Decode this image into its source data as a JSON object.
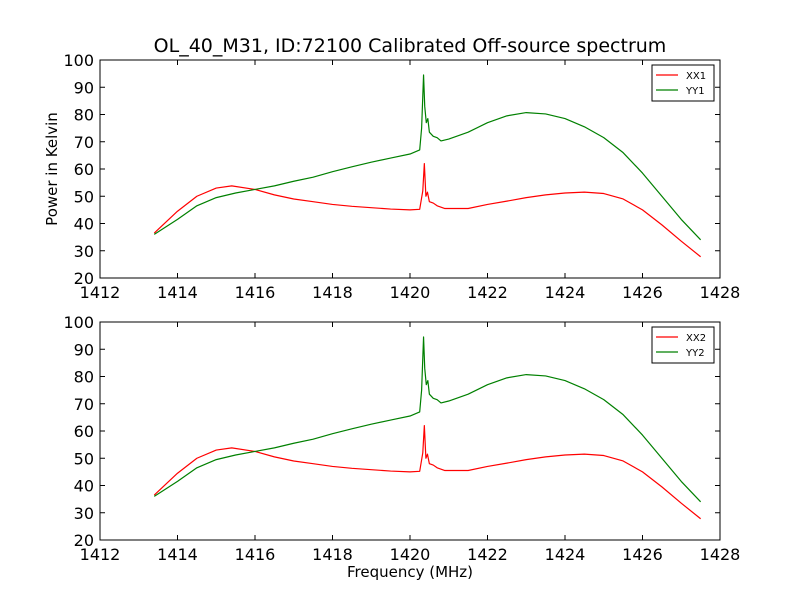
{
  "title": "OL_40_M31, ID:72100 Calibrated Off-source spectrum",
  "colors": {
    "XX": "#ff0000",
    "YY": "#008000"
  },
  "chart_data": [
    {
      "type": "line",
      "ylabel": "Power in Kelvin",
      "xlabel": "",
      "xlim": [
        1412,
        1428
      ],
      "ylim": [
        20,
        100
      ],
      "xticks": [
        1412,
        1414,
        1416,
        1418,
        1420,
        1422,
        1424,
        1426,
        1428
      ],
      "yticks": [
        20,
        30,
        40,
        50,
        60,
        70,
        80,
        90,
        100
      ],
      "legend": "top-right",
      "series": [
        {
          "name": "XX1",
          "color": "#ff0000",
          "points": [
            [
              1413.4,
              36.5
            ],
            [
              1414.0,
              44.5
            ],
            [
              1414.5,
              50.0
            ],
            [
              1415.0,
              53.0
            ],
            [
              1415.4,
              53.8
            ],
            [
              1416.0,
              52.5
            ],
            [
              1416.5,
              50.5
            ],
            [
              1417.0,
              49.0
            ],
            [
              1417.5,
              48.0
            ],
            [
              1418.0,
              47.0
            ],
            [
              1418.5,
              46.3
            ],
            [
              1419.0,
              45.8
            ],
            [
              1419.5,
              45.3
            ],
            [
              1420.0,
              45.0
            ],
            [
              1420.25,
              45.2
            ],
            [
              1420.33,
              52.0
            ],
            [
              1420.37,
              62.0
            ],
            [
              1420.41,
              50.0
            ],
            [
              1420.45,
              51.5
            ],
            [
              1420.5,
              48.0
            ],
            [
              1420.6,
              47.5
            ],
            [
              1420.7,
              46.5
            ],
            [
              1420.9,
              45.5
            ],
            [
              1421.5,
              45.5
            ],
            [
              1422.0,
              47.0
            ],
            [
              1422.5,
              48.2
            ],
            [
              1423.0,
              49.5
            ],
            [
              1423.5,
              50.5
            ],
            [
              1424.0,
              51.2
            ],
            [
              1424.5,
              51.5
            ],
            [
              1425.0,
              51.0
            ],
            [
              1425.5,
              49.0
            ],
            [
              1426.0,
              45.0
            ],
            [
              1426.5,
              39.5
            ],
            [
              1427.0,
              33.5
            ],
            [
              1427.5,
              27.8
            ]
          ]
        },
        {
          "name": "YY1",
          "color": "#008000",
          "points": [
            [
              1413.4,
              36.0
            ],
            [
              1414.0,
              41.5
            ],
            [
              1414.5,
              46.5
            ],
            [
              1415.0,
              49.5
            ],
            [
              1415.5,
              51.2
            ],
            [
              1416.0,
              52.5
            ],
            [
              1416.5,
              53.8
            ],
            [
              1417.0,
              55.5
            ],
            [
              1417.5,
              57.0
            ],
            [
              1418.0,
              59.0
            ],
            [
              1418.5,
              60.8
            ],
            [
              1419.0,
              62.5
            ],
            [
              1419.5,
              64.0
            ],
            [
              1420.0,
              65.5
            ],
            [
              1420.25,
              67.0
            ],
            [
              1420.3,
              75.0
            ],
            [
              1420.35,
              94.5
            ],
            [
              1420.38,
              83.0
            ],
            [
              1420.42,
              77.0
            ],
            [
              1420.46,
              78.5
            ],
            [
              1420.5,
              73.5
            ],
            [
              1420.6,
              72.0
            ],
            [
              1420.7,
              71.5
            ],
            [
              1420.8,
              70.3
            ],
            [
              1421.0,
              71.0
            ],
            [
              1421.5,
              73.5
            ],
            [
              1422.0,
              77.0
            ],
            [
              1422.5,
              79.5
            ],
            [
              1423.0,
              80.7
            ],
            [
              1423.5,
              80.2
            ],
            [
              1424.0,
              78.5
            ],
            [
              1424.5,
              75.5
            ],
            [
              1425.0,
              71.5
            ],
            [
              1425.5,
              66.0
            ],
            [
              1426.0,
              58.5
            ],
            [
              1426.5,
              50.0
            ],
            [
              1427.0,
              41.5
            ],
            [
              1427.5,
              34.0
            ]
          ]
        }
      ]
    },
    {
      "type": "line",
      "ylabel": "",
      "xlabel": "Frequency (MHz)",
      "xlim": [
        1412,
        1428
      ],
      "ylim": [
        20,
        100
      ],
      "xticks": [
        1412,
        1414,
        1416,
        1418,
        1420,
        1422,
        1424,
        1426,
        1428
      ],
      "yticks": [
        20,
        30,
        40,
        50,
        60,
        70,
        80,
        90,
        100
      ],
      "legend": "top-right",
      "series": [
        {
          "name": "XX2",
          "color": "#ff0000",
          "points": [
            [
              1413.4,
              36.5
            ],
            [
              1414.0,
              44.5
            ],
            [
              1414.5,
              50.0
            ],
            [
              1415.0,
              53.0
            ],
            [
              1415.4,
              53.8
            ],
            [
              1416.0,
              52.5
            ],
            [
              1416.5,
              50.5
            ],
            [
              1417.0,
              49.0
            ],
            [
              1417.5,
              48.0
            ],
            [
              1418.0,
              47.0
            ],
            [
              1418.5,
              46.3
            ],
            [
              1419.0,
              45.8
            ],
            [
              1419.5,
              45.3
            ],
            [
              1420.0,
              45.0
            ],
            [
              1420.25,
              45.2
            ],
            [
              1420.33,
              52.0
            ],
            [
              1420.37,
              62.0
            ],
            [
              1420.41,
              50.0
            ],
            [
              1420.45,
              51.5
            ],
            [
              1420.5,
              48.0
            ],
            [
              1420.6,
              47.5
            ],
            [
              1420.7,
              46.5
            ],
            [
              1420.9,
              45.5
            ],
            [
              1421.5,
              45.5
            ],
            [
              1422.0,
              47.0
            ],
            [
              1422.5,
              48.2
            ],
            [
              1423.0,
              49.5
            ],
            [
              1423.5,
              50.5
            ],
            [
              1424.0,
              51.2
            ],
            [
              1424.5,
              51.5
            ],
            [
              1425.0,
              51.0
            ],
            [
              1425.5,
              49.0
            ],
            [
              1426.0,
              45.0
            ],
            [
              1426.5,
              39.5
            ],
            [
              1427.0,
              33.5
            ],
            [
              1427.5,
              27.8
            ]
          ]
        },
        {
          "name": "YY2",
          "color": "#008000",
          "points": [
            [
              1413.4,
              36.0
            ],
            [
              1414.0,
              41.5
            ],
            [
              1414.5,
              46.5
            ],
            [
              1415.0,
              49.5
            ],
            [
              1415.5,
              51.2
            ],
            [
              1416.0,
              52.5
            ],
            [
              1416.5,
              53.8
            ],
            [
              1417.0,
              55.5
            ],
            [
              1417.5,
              57.0
            ],
            [
              1418.0,
              59.0
            ],
            [
              1418.5,
              60.8
            ],
            [
              1419.0,
              62.5
            ],
            [
              1419.5,
              64.0
            ],
            [
              1420.0,
              65.5
            ],
            [
              1420.25,
              67.0
            ],
            [
              1420.3,
              75.0
            ],
            [
              1420.35,
              94.5
            ],
            [
              1420.38,
              83.0
            ],
            [
              1420.42,
              77.0
            ],
            [
              1420.46,
              78.5
            ],
            [
              1420.5,
              73.5
            ],
            [
              1420.6,
              72.0
            ],
            [
              1420.7,
              71.5
            ],
            [
              1420.8,
              70.3
            ],
            [
              1421.0,
              71.0
            ],
            [
              1421.5,
              73.5
            ],
            [
              1422.0,
              77.0
            ],
            [
              1422.5,
              79.5
            ],
            [
              1423.0,
              80.7
            ],
            [
              1423.5,
              80.2
            ],
            [
              1424.0,
              78.5
            ],
            [
              1424.5,
              75.5
            ],
            [
              1425.0,
              71.5
            ],
            [
              1425.5,
              66.0
            ],
            [
              1426.0,
              58.5
            ],
            [
              1426.5,
              50.0
            ],
            [
              1427.0,
              41.5
            ],
            [
              1427.5,
              34.0
            ]
          ]
        }
      ]
    }
  ]
}
